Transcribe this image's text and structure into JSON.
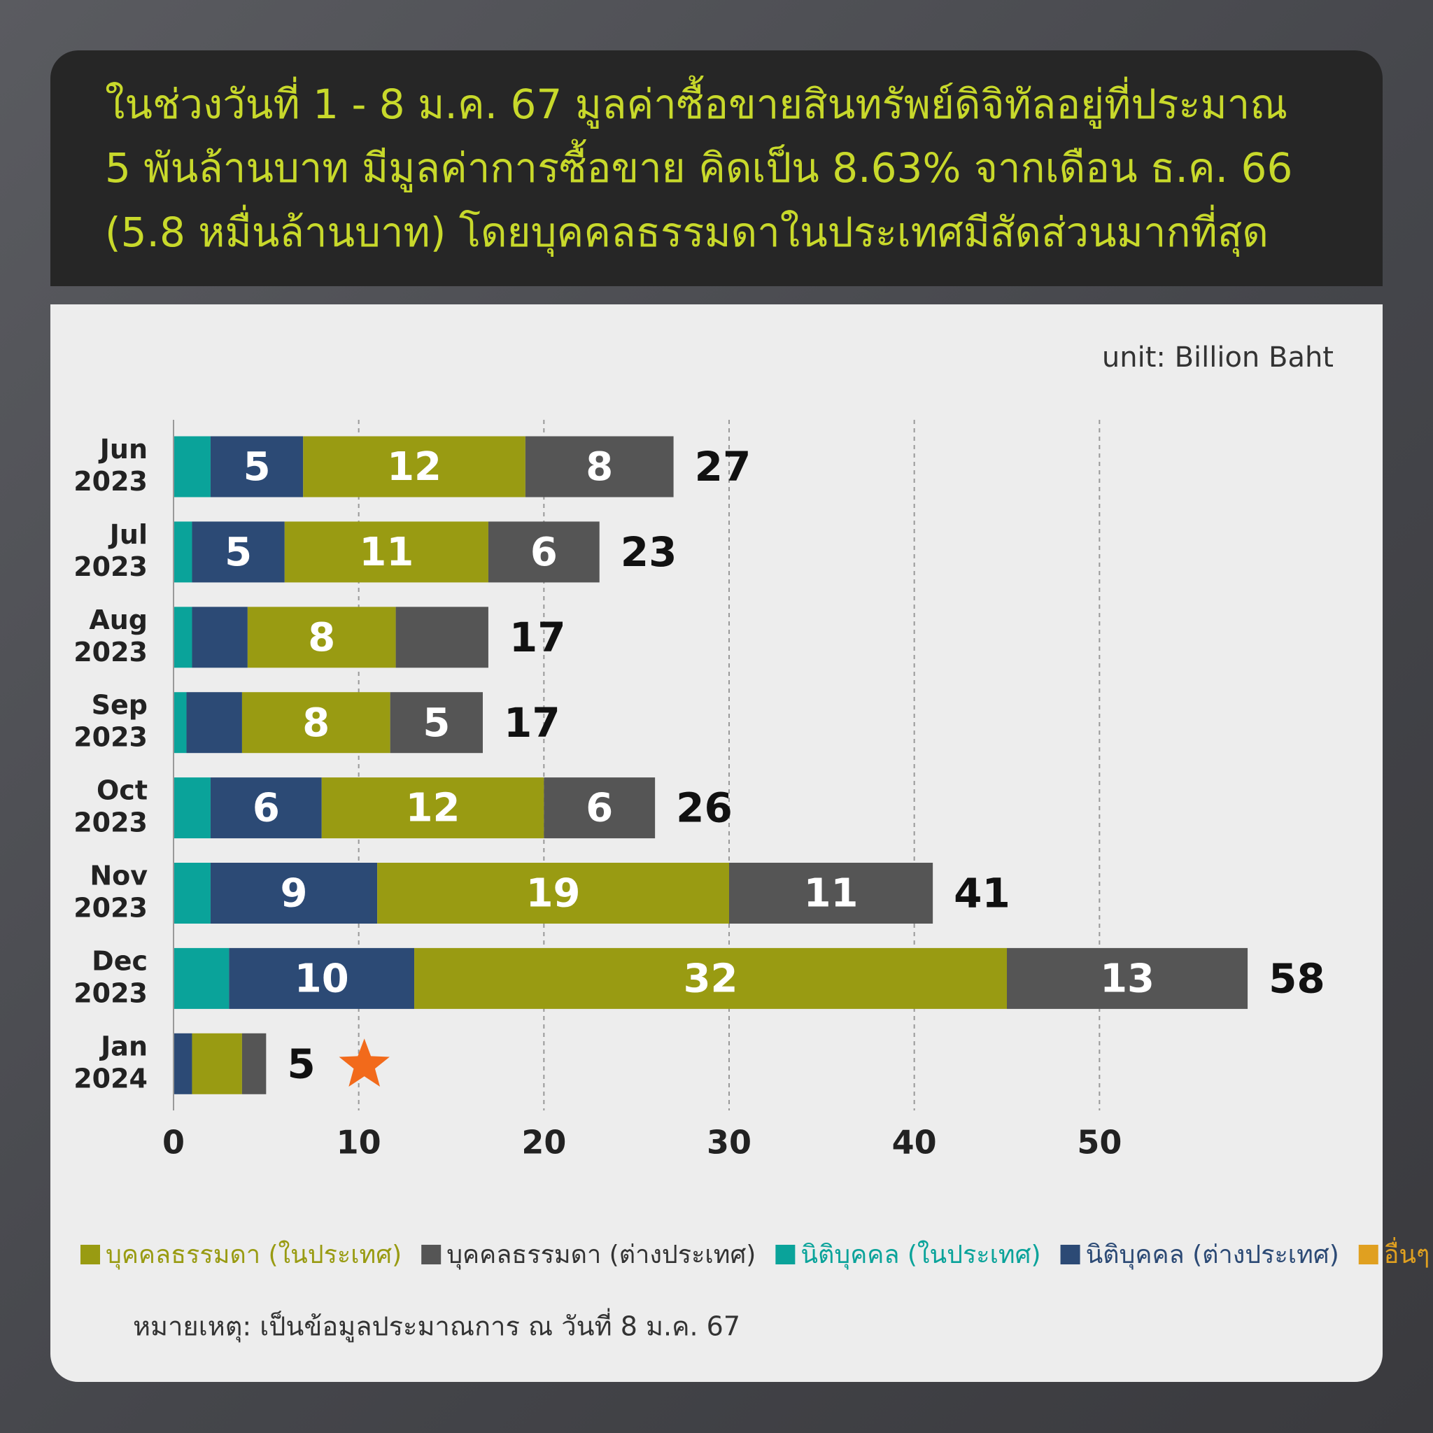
{
  "chart_data": {
    "type": "stacked-barh",
    "title_lines": [
      "ในช่วงวันที่ 1 - 8 ม.ค. 67 มูลค่าซื้อขายสินทรัพย์ดิจิทัลอยู่ที่ประมาณ",
      "5 พันล้านบาท มีมูลค่าการซื้อขาย คิดเป็น 8.63% จากเดือน ธ.ค. 66",
      "(5.8 หมื่นล้านบาท) โดยบุคคลธรรมดาในประเทศมีสัดส่วนมากที่สุด"
    ],
    "unit_label": "unit: Billion Baht",
    "categories": [
      "Jun 2023",
      "Jul 2023",
      "Aug 2023",
      "Sep 2023",
      "Oct 2023",
      "Nov 2023",
      "Dec 2023",
      "Jan 2024"
    ],
    "series": [
      {
        "name": "นิติบุคคล (ในประเทศ)",
        "color": "#0aa39a",
        "values": [
          2,
          1,
          1,
          0.7,
          2,
          2,
          3,
          0
        ],
        "value_labels": [
          null,
          null,
          null,
          null,
          null,
          null,
          null,
          null
        ]
      },
      {
        "name": "นิติบุคคล (ต่างประเทศ)",
        "color": "#2c4a75",
        "values": [
          5,
          5,
          3,
          3,
          6,
          9,
          10,
          1
        ],
        "value_labels": [
          "5",
          "5",
          null,
          null,
          "6",
          "9",
          "10",
          null
        ]
      },
      {
        "name": "บุคคลธรรมดา (ในประเทศ)",
        "color": "#999b12",
        "values": [
          12,
          11,
          8,
          8,
          12,
          19,
          32,
          2.7
        ],
        "value_labels": [
          "12",
          "11",
          "8",
          "8",
          "12",
          "19",
          "32",
          null
        ]
      },
      {
        "name": "บุคคลธรรมดา (ต่างประเทศ)",
        "color": "#555555",
        "values": [
          8,
          6,
          5,
          5,
          6,
          11,
          13,
          1.3
        ],
        "value_labels": [
          "8",
          "6",
          null,
          "5",
          "6",
          "11",
          "13",
          null
        ]
      },
      {
        "name": "อื่นๆ",
        "color": "#e0a020",
        "values": [
          0,
          0,
          0,
          0,
          0,
          0,
          0,
          0
        ],
        "value_labels": [
          null,
          null,
          null,
          null,
          null,
          null,
          null,
          null
        ]
      }
    ],
    "legend_order": [
      2,
      3,
      0,
      1,
      4
    ],
    "totals": [
      27,
      23,
      17,
      17,
      26,
      41,
      58,
      5
    ],
    "xlim": [
      0,
      60
    ],
    "xticks": [
      0,
      10,
      20,
      30,
      40,
      50
    ],
    "grid": true,
    "note": "หมายเหตุ: เป็นข้อมูลประมาณการ ณ วันที่ 8 ม.ค. 67"
  }
}
